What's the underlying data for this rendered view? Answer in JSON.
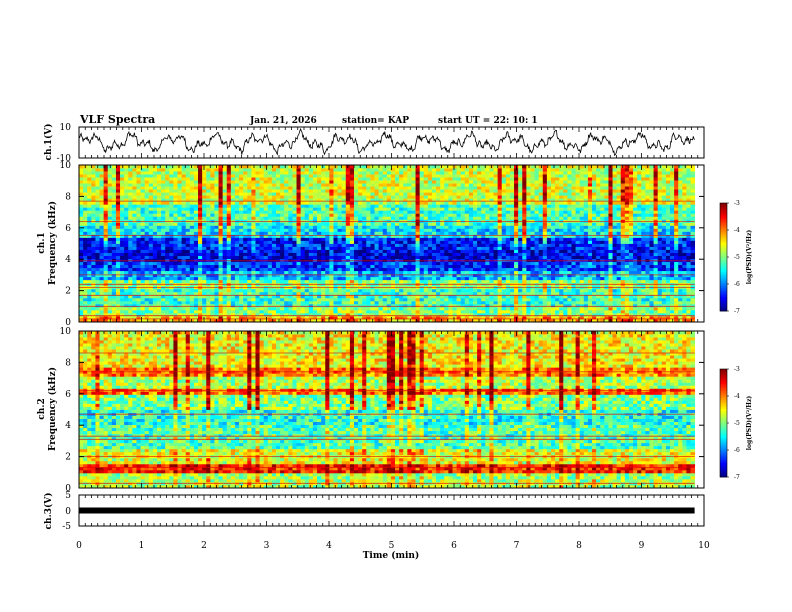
{
  "header": {
    "title": "VLF Spectra",
    "date": "Jan. 21, 2026",
    "station": "station= KAP",
    "start": "start  UT =  22: 10: 1"
  },
  "chart_data": [
    {
      "type": "line",
      "name": "ch1-waveform",
      "ylabel": "ch.1(V)",
      "ylim": [
        -10,
        10
      ],
      "yticks": [
        "10",
        "-10"
      ],
      "xlim": [
        0,
        10
      ],
      "data_end_min": 9.85
    },
    {
      "type": "heatmap",
      "name": "ch1-spectrogram",
      "ylabel": "ch.1\nFrequency (kHz)",
      "ylabel_line1": "ch.1",
      "ylabel_line2": "Frequency (kHz)",
      "ylim": [
        0,
        10
      ],
      "yticks": [
        "0",
        "2",
        "4",
        "6",
        "8",
        "10"
      ],
      "xlim": [
        0,
        10
      ],
      "colorbar": {
        "range": [
          -7,
          -3
        ],
        "ticks": [
          "-3",
          "-4",
          "-5",
          "-6",
          "-7"
        ],
        "label": "log(PSD)(V²/Hz)"
      },
      "bands_khz": [
        {
          "from": 0.0,
          "to": 0.3,
          "level": -4.2
        },
        {
          "from": 0.3,
          "to": 1.0,
          "level": -5.0
        },
        {
          "from": 1.0,
          "to": 2.2,
          "level": -5.3
        },
        {
          "from": 2.2,
          "to": 2.6,
          "level": -5.0
        },
        {
          "from": 2.6,
          "to": 3.3,
          "level": -5.8
        },
        {
          "from": 3.3,
          "to": 3.9,
          "level": -6.3
        },
        {
          "from": 3.9,
          "to": 4.7,
          "level": -6.6
        },
        {
          "from": 4.7,
          "to": 5.4,
          "level": -6.4
        },
        {
          "from": 5.4,
          "to": 6.2,
          "level": -5.6
        },
        {
          "from": 6.2,
          "to": 7.5,
          "level": -5.2
        },
        {
          "from": 7.5,
          "to": 10.0,
          "level": -4.7
        }
      ],
      "lines_khz": [
        0.2,
        0.4,
        1.0,
        1.7,
        2.2,
        2.4,
        3.0,
        3.9,
        5.5,
        6.4,
        7.7
      ]
    },
    {
      "type": "heatmap",
      "name": "ch2-spectrogram",
      "ylabel": "ch.2\nFrequency (kHz)",
      "ylabel_line1": "ch.2",
      "ylabel_line2": "Frequency (kHz)",
      "ylim": [
        0,
        10
      ],
      "yticks": [
        "0",
        "2",
        "4",
        "6",
        "8",
        "10"
      ],
      "xlim": [
        0,
        10
      ],
      "colorbar": {
        "range": [
          -7,
          -3
        ],
        "ticks": [
          "-3",
          "-4",
          "-5",
          "-6",
          "-7"
        ],
        "label": "log(PSD)(V²/Hz)"
      },
      "bands_khz": [
        {
          "from": 0.0,
          "to": 0.5,
          "level": -4.8
        },
        {
          "from": 0.5,
          "to": 1.0,
          "level": -4.9
        },
        {
          "from": 1.0,
          "to": 1.6,
          "level": -3.6
        },
        {
          "from": 1.6,
          "to": 2.5,
          "level": -4.6
        },
        {
          "from": 2.5,
          "to": 4.0,
          "level": -5.2
        },
        {
          "from": 4.0,
          "to": 5.0,
          "level": -5.4
        },
        {
          "from": 5.0,
          "to": 6.0,
          "level": -5.0
        },
        {
          "from": 6.0,
          "to": 6.4,
          "level": -3.9
        },
        {
          "from": 6.4,
          "to": 7.2,
          "level": -4.8
        },
        {
          "from": 7.2,
          "to": 7.6,
          "level": -4.0
        },
        {
          "from": 7.6,
          "to": 10.0,
          "level": -4.5
        }
      ],
      "lines_khz": [
        0.3,
        1.3,
        2.0,
        3.1,
        3.3,
        4.7,
        6.2,
        7.4,
        8.6
      ]
    },
    {
      "type": "line",
      "name": "ch3-waveform",
      "ylabel": "ch.3(V)",
      "ylim": [
        -5,
        5
      ],
      "yticks": [
        "5",
        "0",
        "-5"
      ],
      "xlim": [
        0,
        10
      ],
      "level_v": 0.0,
      "data_end_min": 9.85
    }
  ],
  "xaxis": {
    "label": "Time (min)",
    "ticks": [
      "0",
      "1",
      "2",
      "3",
      "4",
      "5",
      "6",
      "7",
      "8",
      "9",
      "10"
    ]
  }
}
